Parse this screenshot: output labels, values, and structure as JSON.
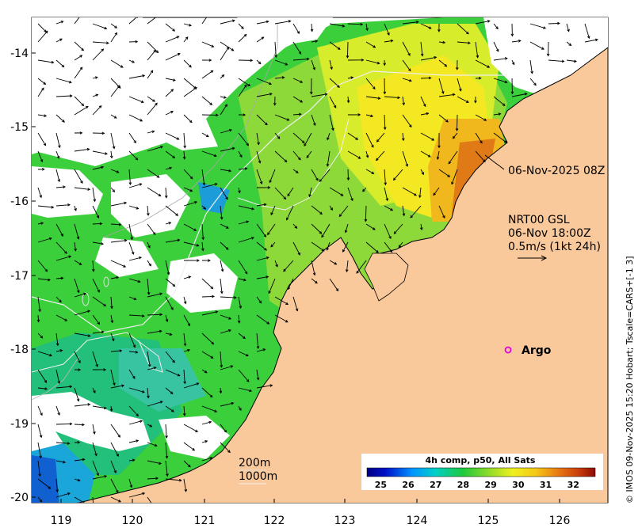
{
  "map": {
    "lat_ticks": [
      "-14",
      "-15",
      "-16",
      "-17",
      "-18",
      "-19",
      "-20"
    ],
    "lon_ticks": [
      "119",
      "120",
      "121",
      "122",
      "123",
      "124",
      "125",
      "126"
    ],
    "lat_range": [
      -20.1,
      -13.5
    ],
    "lon_range": [
      118.6,
      126.7
    ]
  },
  "annotations": {
    "sst_time": "06-Nov-2025 08Z",
    "current_source": "NRT00 GSL",
    "current_time": "06-Nov 18:00Z",
    "vector_scale": "0.5m/s (1kt 24h)",
    "argo_label": "Argo",
    "depth_contour_1": "200m",
    "depth_contour_2": "1000m"
  },
  "colorbar": {
    "title": "4h comp, p50, All Sats",
    "ticks": [
      "25",
      "26",
      "27",
      "28",
      "29",
      "30",
      "31",
      "32"
    ],
    "range": [
      24.5,
      32.8
    ]
  },
  "credit": "© IMOS 09-Nov-2025 15:20 Hobart; Tscale=CARS+[-1 3]",
  "colors": {
    "land": "#f9c99b",
    "cloud": "#ffffff",
    "argo_marker": "#e000e0"
  }
}
